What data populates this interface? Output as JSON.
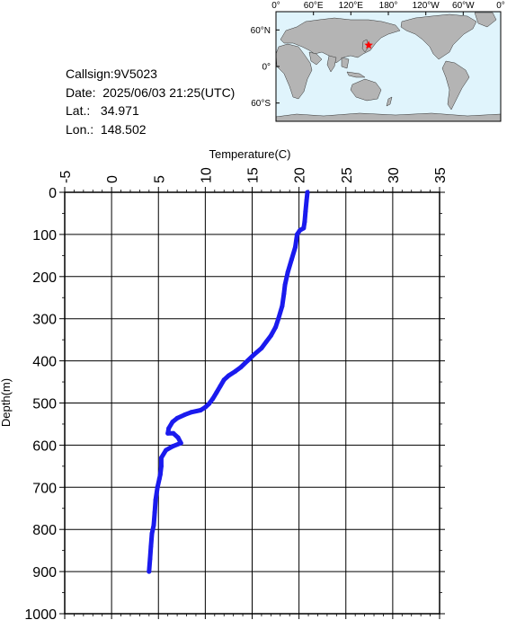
{
  "station": {
    "callsign_label": "Callsign:",
    "callsign": "9V5023",
    "date_label": "Date:",
    "date": "2025/06/03 21:25(UTC)",
    "lat_label": "Lat.:",
    "lat": "34.971",
    "lon_label": "Lon.:",
    "lon": "148.502"
  },
  "map": {
    "lon_labels": [
      "0°",
      "60°E",
      "120°E",
      "180°",
      "120°W",
      "60°W",
      "0°"
    ],
    "lat_labels": [
      "60°N",
      "0°",
      "60°S"
    ],
    "ocean_color": "#e0f4fc",
    "land_color": "#b4b4b4",
    "marker_color": "#ff0000",
    "marker_lat": 34.971,
    "marker_lon": 148.502
  },
  "chart_data": {
    "type": "line",
    "xlabel": "Temperature(C)",
    "ylabel": "Depth(m)",
    "xlim": [
      -5,
      35
    ],
    "ylim": [
      0,
      1000
    ],
    "x_ticks": [
      "-5",
      "0",
      "5",
      "10",
      "15",
      "20",
      "25",
      "30",
      "35"
    ],
    "y_ticks": [
      "0",
      "100",
      "200",
      "300",
      "400",
      "500",
      "600",
      "700",
      "800",
      "900",
      "1000"
    ],
    "series_color": "#1a1aee",
    "series": [
      {
        "points": [
          [
            20.9,
            0
          ],
          [
            20.8,
            20
          ],
          [
            20.7,
            45
          ],
          [
            20.6,
            70
          ],
          [
            20.5,
            85
          ],
          [
            20.1,
            90
          ],
          [
            19.8,
            100
          ],
          [
            19.6,
            130
          ],
          [
            19.2,
            160
          ],
          [
            18.8,
            190
          ],
          [
            18.5,
            220
          ],
          [
            18.4,
            240
          ],
          [
            18.2,
            270
          ],
          [
            17.8,
            300
          ],
          [
            17.5,
            320
          ],
          [
            17.0,
            340
          ],
          [
            16.5,
            355
          ],
          [
            16.0,
            370
          ],
          [
            15.2,
            385
          ],
          [
            14.5,
            400
          ],
          [
            13.8,
            415
          ],
          [
            13.2,
            425
          ],
          [
            12.5,
            435
          ],
          [
            12.0,
            445
          ],
          [
            11.6,
            460
          ],
          [
            11.2,
            475
          ],
          [
            10.8,
            490
          ],
          [
            10.4,
            502
          ],
          [
            10.0,
            510
          ],
          [
            9.5,
            517
          ],
          [
            8.5,
            522
          ],
          [
            7.8,
            528
          ],
          [
            7.0,
            536
          ],
          [
            6.5,
            545
          ],
          [
            6.1,
            560
          ],
          [
            6.0,
            572
          ],
          [
            6.6,
            572
          ],
          [
            7.1,
            582
          ],
          [
            7.4,
            595
          ],
          [
            6.5,
            603
          ],
          [
            5.8,
            612
          ],
          [
            5.3,
            630
          ],
          [
            5.3,
            650
          ],
          [
            5.2,
            670
          ],
          [
            5.1,
            680
          ],
          [
            4.9,
            700
          ],
          [
            4.7,
            730
          ],
          [
            4.6,
            760
          ],
          [
            4.5,
            790
          ],
          [
            4.3,
            810
          ],
          [
            4.2,
            840
          ],
          [
            4.1,
            870
          ],
          [
            4.0,
            900
          ]
        ]
      }
    ]
  }
}
